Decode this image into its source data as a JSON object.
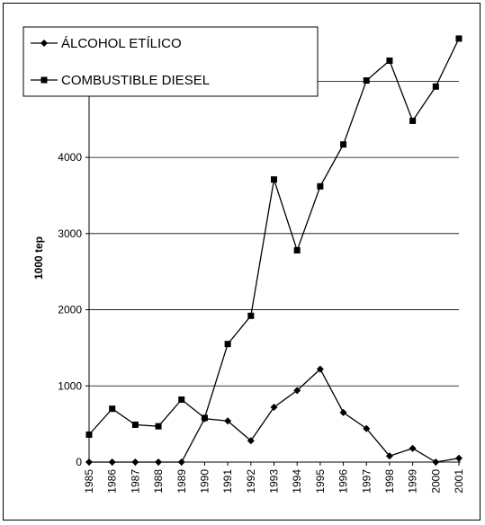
{
  "chart_data": {
    "type": "line",
    "title": "",
    "xlabel": "",
    "ylabel": "1000 tep",
    "ylim": [
      0,
      5500
    ],
    "yticks": [
      0,
      1000,
      2000,
      3000,
      4000,
      5000
    ],
    "grid": true,
    "legend_position": "top-left",
    "categories": [
      "1985",
      "1986",
      "1987",
      "1988",
      "1989",
      "1990",
      "1991",
      "1992",
      "1993",
      "1994",
      "1995",
      "1996",
      "1997",
      "1998",
      "1999",
      "2000",
      "2001"
    ],
    "series": [
      {
        "name": "ÁLCOHOL ETÍLICO",
        "marker": "diamond",
        "color": "#000000",
        "values": [
          0,
          0,
          0,
          0,
          0,
          570,
          540,
          280,
          720,
          940,
          1220,
          650,
          440,
          80,
          180,
          0,
          50
        ]
      },
      {
        "name": "COMBUSTIBLE DIESEL",
        "marker": "square",
        "color": "#000000",
        "values": [
          360,
          700,
          490,
          470,
          820,
          580,
          1550,
          1920,
          3710,
          2780,
          3620,
          4170,
          5010,
          5270,
          4480,
          4930,
          5560
        ]
      }
    ]
  }
}
